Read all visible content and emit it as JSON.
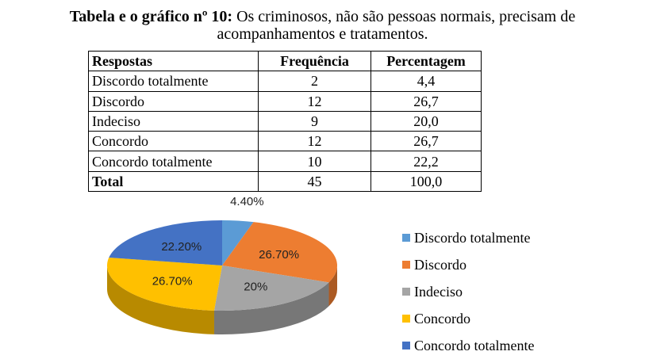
{
  "title": {
    "prefix": "Tabela e o gráfico nº 10:",
    "text": " Os criminosos, não são pessoas normais, precisam de",
    "line2": "acompanhamentos e tratamentos."
  },
  "table": {
    "headers": [
      "Respostas",
      "Frequência",
      "Percentagem"
    ],
    "rows": [
      [
        "Discordo totalmente",
        "2",
        "4,4"
      ],
      [
        "Discordo",
        "12",
        "26,7"
      ],
      [
        "Indeciso",
        "9",
        "20,0"
      ],
      [
        "Concordo",
        "12",
        "26,7"
      ],
      [
        "Concordo totalmente",
        "10",
        "22,2"
      ],
      [
        "Total",
        "45",
        "100,0"
      ]
    ]
  },
  "chart_data": {
    "type": "pie",
    "categories": [
      "Discordo totalmente",
      "Discordo",
      "Indeciso",
      "Concordo",
      "Concordo totalmente"
    ],
    "values": [
      4.4,
      26.7,
      20,
      26.7,
      22.2
    ],
    "data_labels": [
      "4.40%",
      "26.70%",
      "20%",
      "26.70%",
      "22.20%"
    ],
    "colors": [
      "#5b9bd5",
      "#ed7d31",
      "#a5a5a5",
      "#ffc000",
      "#4472c4"
    ],
    "legend_position": "right",
    "style": "3d"
  }
}
